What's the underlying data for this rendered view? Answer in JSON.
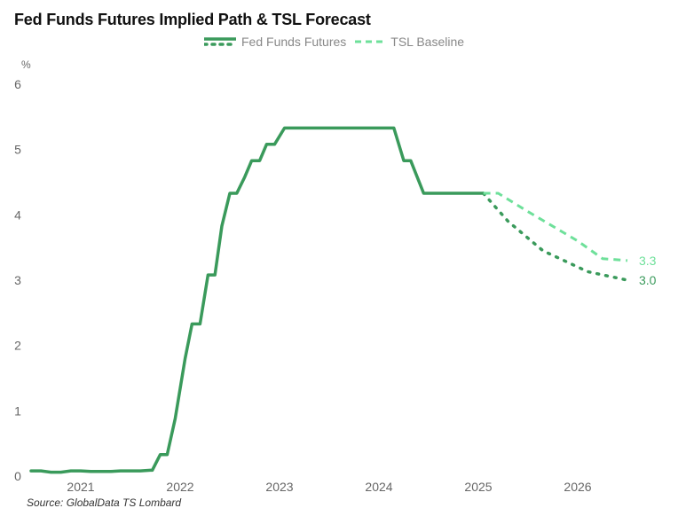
{
  "chart_data": {
    "type": "line",
    "title": "Fed Funds Futures Implied Path & TSL Forecast",
    "y_unit": "%",
    "ylim": [
      0,
      6
    ],
    "y_ticks": [
      "0",
      "1",
      "2",
      "3",
      "4",
      "5",
      "6"
    ],
    "x_range": [
      2020.5,
      2027.0
    ],
    "x_ticks": [
      "2021",
      "2022",
      "2023",
      "2024",
      "2025",
      "2026"
    ],
    "grid": false,
    "legend_position": "top-center",
    "colors": {
      "fed_funds": "#3a9a5b",
      "tsl": "#6ee09a",
      "fed_label": "#3a9a5b",
      "tsl_label": "#6ee09a"
    },
    "series": [
      {
        "name": "Fed Funds Futures",
        "style": "solid",
        "points": [
          [
            2020.5,
            0.08
          ],
          [
            2020.6,
            0.08
          ],
          [
            2020.7,
            0.06
          ],
          [
            2020.8,
            0.06
          ],
          [
            2020.9,
            0.08
          ],
          [
            2021.0,
            0.08
          ],
          [
            2021.1,
            0.07
          ],
          [
            2021.2,
            0.07
          ],
          [
            2021.3,
            0.07
          ],
          [
            2021.4,
            0.08
          ],
          [
            2021.5,
            0.08
          ],
          [
            2021.6,
            0.08
          ],
          [
            2021.7,
            0.09
          ],
          [
            2021.72,
            0.09
          ],
          [
            2021.8,
            0.33
          ],
          [
            2021.87,
            0.33
          ],
          [
            2021.95,
            0.88
          ],
          [
            2022.05,
            1.8
          ],
          [
            2022.12,
            2.33
          ],
          [
            2022.2,
            2.33
          ],
          [
            2022.28,
            3.08
          ],
          [
            2022.35,
            3.08
          ],
          [
            2022.42,
            3.83
          ],
          [
            2022.5,
            4.33
          ],
          [
            2022.57,
            4.33
          ],
          [
            2022.65,
            4.58
          ],
          [
            2022.72,
            4.83
          ],
          [
            2022.8,
            4.83
          ],
          [
            2022.87,
            5.08
          ],
          [
            2022.95,
            5.08
          ],
          [
            2023.05,
            5.33
          ],
          [
            2024.15,
            5.33
          ],
          [
            2024.25,
            4.83
          ],
          [
            2024.32,
            4.83
          ],
          [
            2024.45,
            4.33
          ],
          [
            2025.0,
            4.33
          ],
          [
            2025.05,
            4.33
          ]
        ]
      },
      {
        "name": "Fed Funds Futures",
        "style": "dotted",
        "points": [
          [
            2025.05,
            4.33
          ],
          [
            2025.3,
            3.9
          ],
          [
            2025.65,
            3.45
          ],
          [
            2026.1,
            3.13
          ],
          [
            2026.5,
            3.0
          ]
        ],
        "end_label": "3.0"
      },
      {
        "name": "TSL Baseline",
        "style": "dashed",
        "points": [
          [
            2025.05,
            4.33
          ],
          [
            2025.2,
            4.33
          ],
          [
            2025.5,
            4.05
          ],
          [
            2026.0,
            3.6
          ],
          [
            2026.25,
            3.33
          ],
          [
            2026.5,
            3.3
          ]
        ],
        "end_label": "3.3"
      }
    ],
    "legend": [
      {
        "label": "Fed Funds Futures",
        "style": "solid+dotted"
      },
      {
        "label": "TSL Baseline",
        "style": "dashed"
      }
    ],
    "source": "Source: GlobalData TS Lombard"
  }
}
